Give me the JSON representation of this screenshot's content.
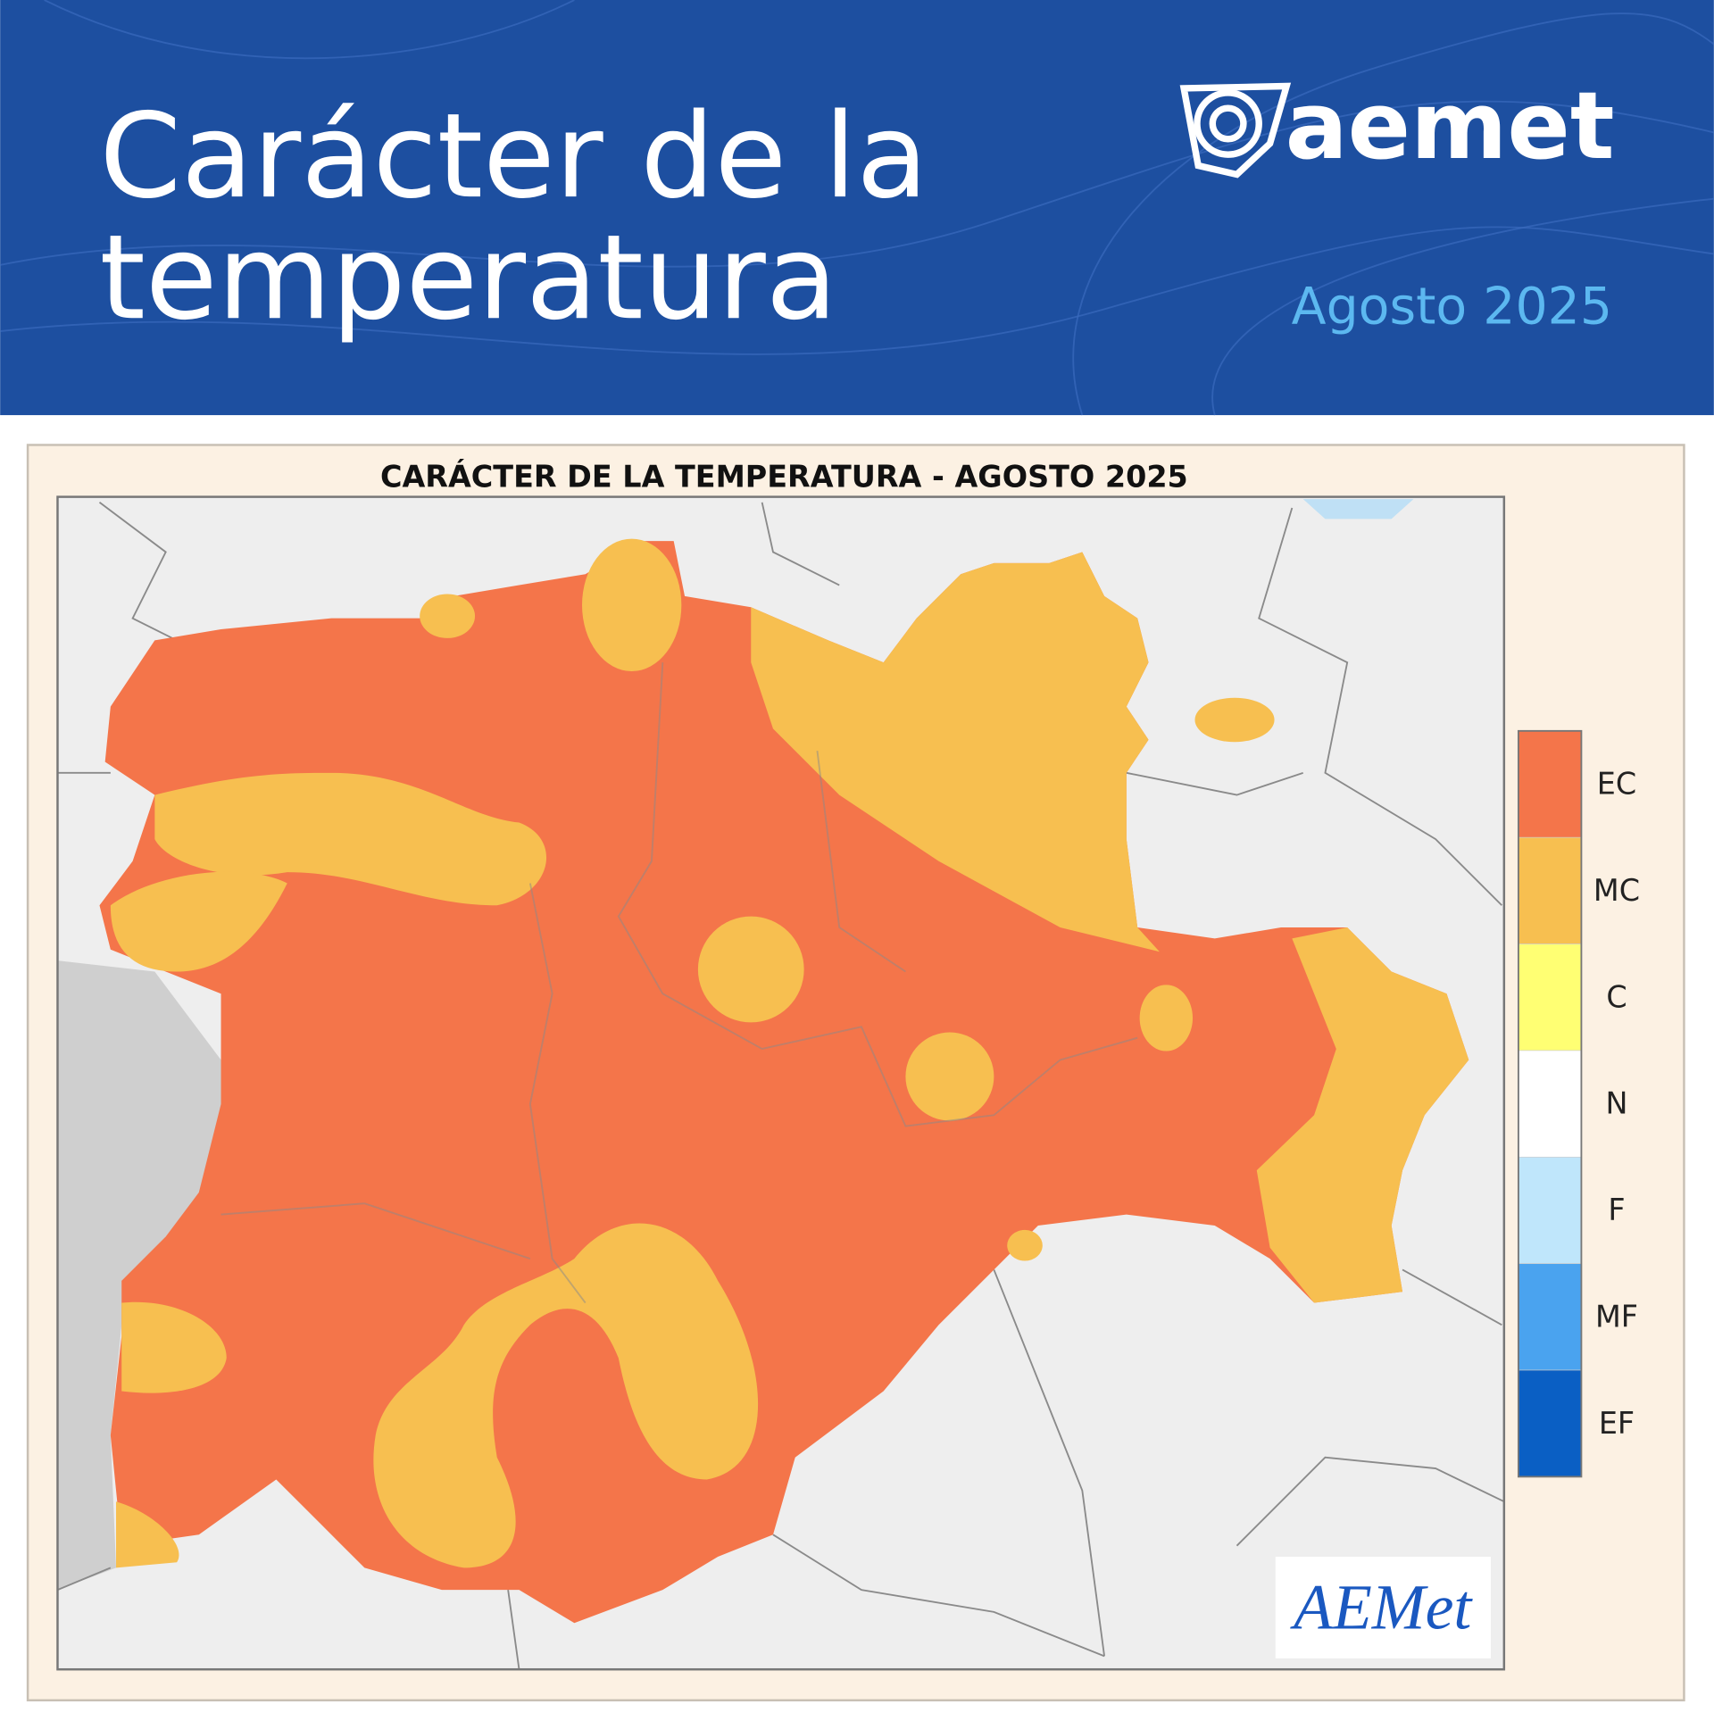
{
  "header": {
    "title_lines": [
      "Carácter de la",
      "temperatura"
    ],
    "brand": "aemet",
    "period": "Agosto 2025"
  },
  "map": {
    "title": "CARÁCTER DE LA TEMPERATURA - AGOSTO 2025",
    "legend": [
      {
        "label": "EC",
        "color": "#f4754a"
      },
      {
        "label": "MC",
        "color": "#f7bf50"
      },
      {
        "label": "C",
        "color": "#ffff73"
      },
      {
        "label": "N",
        "color": "#ffffff"
      },
      {
        "label": "F",
        "color": "#bfe6fb"
      },
      {
        "label": "MF",
        "color": "#4aa3ef"
      },
      {
        "label": "EF",
        "color": "#0a5fc4"
      }
    ],
    "logo": "AEMet"
  }
}
